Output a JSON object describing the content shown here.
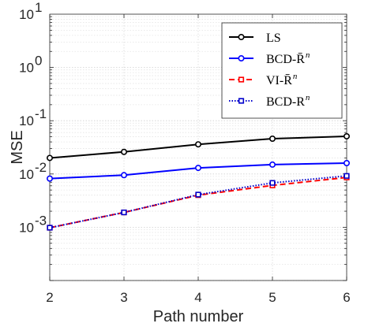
{
  "chart_data": {
    "type": "line",
    "xlabel": "Path number",
    "ylabel": "MSE",
    "x": [
      2,
      3,
      4,
      5,
      6
    ],
    "xlim": [
      2,
      6
    ],
    "ylim": [
      0.0001,
      10
    ],
    "yscale": "log",
    "xticks": [
      "2",
      "3",
      "4",
      "5",
      "6"
    ],
    "yticks": [
      {
        "value": 0.001,
        "base": "10",
        "exp": "-3"
      },
      {
        "value": 0.01,
        "base": "10",
        "exp": "-2"
      },
      {
        "value": 0.1,
        "base": "10",
        "exp": "-1"
      },
      {
        "value": 1,
        "base": "10",
        "exp": "0"
      },
      {
        "value": 10,
        "base": "10",
        "exp": "1"
      }
    ],
    "grid": true,
    "legend_position": "top-right",
    "series": [
      {
        "label_main": "LS",
        "label_sup": "",
        "color": "#000000",
        "dash": "solid",
        "marker": "circle",
        "values": [
          0.02,
          0.026,
          0.036,
          0.046,
          0.051
        ]
      },
      {
        "label_main": "BCD-R̄",
        "label_sup": "n",
        "color": "#0000ff",
        "dash": "solid",
        "marker": "circle",
        "values": [
          0.0082,
          0.0095,
          0.013,
          0.015,
          0.016
        ]
      },
      {
        "label_main": "VI-R̄",
        "label_sup": "n",
        "color": "#ff0000",
        "dash": "dashed",
        "marker": "square",
        "values": [
          0.00098,
          0.0019,
          0.004,
          0.0061,
          0.0086
        ]
      },
      {
        "label_main": "BCD-R",
        "label_sup": "n",
        "color": "#0000cc",
        "dash": "dotted",
        "marker": "square",
        "values": [
          0.00098,
          0.0019,
          0.0041,
          0.0068,
          0.0092
        ]
      }
    ]
  }
}
